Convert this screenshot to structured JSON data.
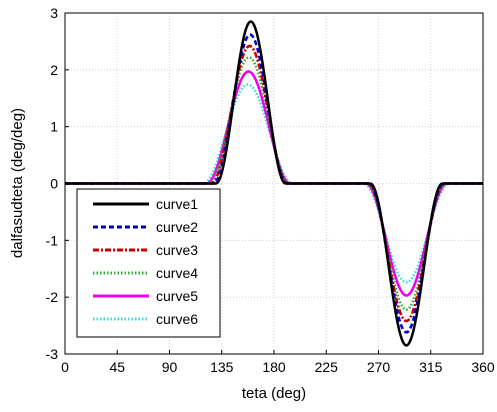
{
  "chart_data": {
    "type": "line",
    "xlabel": "teta (deg)",
    "ylabel": "dalfasudteta (deg/deg)",
    "xlim": [
      0,
      360
    ],
    "ylim": [
      -3,
      3
    ],
    "x_ticks": [
      0,
      45,
      90,
      135,
      180,
      225,
      270,
      315,
      360
    ],
    "x_tick_labels": [
      "0",
      "45",
      "90",
      "135",
      "180",
      "225",
      "270",
      "315",
      "360"
    ],
    "y_ticks": [
      3,
      2,
      1,
      0,
      -1,
      -2,
      -3
    ],
    "y_tick_labels": [
      "3",
      "2",
      "1",
      "0",
      "-1",
      "-2",
      "-3"
    ],
    "grid": true,
    "legend_position": "lower-left",
    "series": [
      {
        "name": "curve1",
        "color": "#000000",
        "style": "solid",
        "peak": 2.85,
        "rise_start": 130,
        "rise_end": 190,
        "fall_start": 263,
        "fall_end": 325
      },
      {
        "name": "curve2",
        "color": "#0000cc",
        "style": "dashed",
        "peak": 2.62,
        "rise_start": 128,
        "rise_end": 191,
        "fall_start": 262,
        "fall_end": 326
      },
      {
        "name": "curve3",
        "color": "#cc0000",
        "style": "dashdot",
        "peak": 2.42,
        "rise_start": 126,
        "rise_end": 192,
        "fall_start": 261,
        "fall_end": 327
      },
      {
        "name": "curve4",
        "color": "#33aa33",
        "style": "dotted",
        "peak": 2.22,
        "rise_start": 124,
        "rise_end": 193,
        "fall_start": 260,
        "fall_end": 328
      },
      {
        "name": "curve5",
        "color": "#ee00ee",
        "style": "solid",
        "peak": 1.97,
        "rise_start": 122,
        "rise_end": 194,
        "fall_start": 259,
        "fall_end": 329
      },
      {
        "name": "curve6",
        "color": "#33dddd",
        "style": "dotted",
        "peak": 1.74,
        "rise_start": 119,
        "rise_end": 196,
        "fall_start": 257,
        "fall_end": 331
      }
    ]
  }
}
